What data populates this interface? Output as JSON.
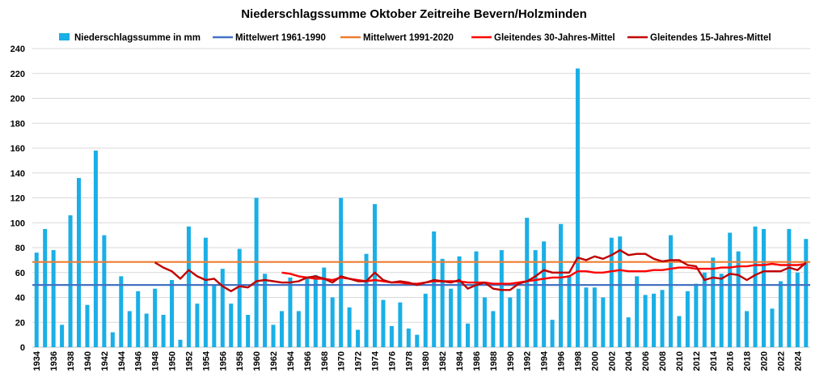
{
  "chart_data": {
    "type": "bar",
    "title": "Niederschlagssumme Oktober Zeitreihe Bevern/Holzminden",
    "xlabel": "",
    "ylabel": "",
    "ylim": [
      0,
      240
    ],
    "yticks": [
      0,
      20,
      40,
      60,
      80,
      100,
      120,
      140,
      160,
      180,
      200,
      220,
      240
    ],
    "xtick_labels": [
      "1934",
      "1936",
      "1938",
      "1940",
      "1942",
      "1944",
      "1946",
      "1948",
      "1950",
      "1952",
      "1954",
      "1956",
      "1958",
      "1960",
      "1962",
      "1964",
      "1966",
      "1968",
      "1970",
      "1972",
      "1974",
      "1976",
      "1978",
      "1980",
      "1982",
      "1984",
      "1986",
      "1988",
      "1990",
      "1992",
      "1994",
      "1996",
      "1998",
      "2000",
      "2002",
      "2004",
      "2006",
      "2008",
      "2010",
      "2012",
      "2014",
      "2016",
      "2018",
      "2020",
      "2022",
      "2024"
    ],
    "grid": "horizontal",
    "legend_position": "top",
    "categories": [
      1934,
      1935,
      1936,
      1937,
      1938,
      1939,
      1940,
      1941,
      1942,
      1943,
      1944,
      1945,
      1946,
      1947,
      1948,
      1949,
      1950,
      1951,
      1952,
      1953,
      1954,
      1955,
      1956,
      1957,
      1958,
      1959,
      1960,
      1961,
      1962,
      1963,
      1964,
      1965,
      1966,
      1967,
      1968,
      1969,
      1970,
      1971,
      1972,
      1973,
      1974,
      1975,
      1976,
      1977,
      1978,
      1979,
      1980,
      1981,
      1982,
      1983,
      1984,
      1985,
      1986,
      1987,
      1988,
      1989,
      1990,
      1991,
      1992,
      1993,
      1994,
      1995,
      1996,
      1997,
      1998,
      1999,
      2000,
      2001,
      2002,
      2003,
      2004,
      2005,
      2006,
      2007,
      2008,
      2009,
      2010,
      2011,
      2012,
      2013,
      2014,
      2015,
      2016,
      2017,
      2018,
      2019,
      2020,
      2021,
      2022,
      2023,
      2024,
      2025
    ],
    "series": [
      {
        "name": "Niederschlagssumme in mm",
        "kind": "bar",
        "color": "#1AAFE6",
        "values": [
          76,
          95,
          78,
          18,
          106,
          136,
          34,
          158,
          90,
          12,
          57,
          29,
          45,
          27,
          47,
          26,
          54,
          6,
          97,
          35,
          88,
          50,
          63,
          35,
          79,
          26,
          120,
          59,
          18,
          29,
          56,
          29,
          56,
          58,
          64,
          40,
          120,
          32,
          14,
          75,
          115,
          38,
          17,
          36,
          15,
          10,
          43,
          93,
          71,
          47,
          73,
          19,
          77,
          40,
          29,
          78,
          40,
          47,
          104,
          78,
          85,
          22,
          99,
          58,
          224,
          48,
          48,
          40,
          88,
          89,
          24,
          57,
          42,
          43,
          46,
          90,
          25,
          45,
          51,
          60,
          72,
          59,
          92,
          77,
          29,
          97,
          95,
          31,
          53,
          95,
          60,
          87
        ]
      },
      {
        "name": "Mittelwert 1961-1990",
        "kind": "hline",
        "color": "#4472C4",
        "value": 50
      },
      {
        "name": "Mittelwert 1991-2020",
        "kind": "hline",
        "color": "#ED7D31",
        "value": 68.5
      },
      {
        "name": "Gleitendes 30-Jahres-Mittel",
        "kind": "line",
        "color": "#FF0000",
        "x": [
          1963,
          1964,
          1965,
          1966,
          1967,
          1968,
          1969,
          1970,
          1971,
          1972,
          1973,
          1974,
          1975,
          1976,
          1977,
          1978,
          1979,
          1980,
          1981,
          1982,
          1983,
          1984,
          1985,
          1986,
          1987,
          1988,
          1989,
          1990,
          1991,
          1992,
          1993,
          1994,
          1995,
          1996,
          1997,
          1998,
          1999,
          2000,
          2001,
          2002,
          2003,
          2004,
          2005,
          2006,
          2007,
          2008,
          2009,
          2010,
          2011,
          2012,
          2013,
          2014,
          2015,
          2016,
          2017,
          2018,
          2019,
          2020,
          2021,
          2022,
          2023,
          2024,
          2025
        ],
        "values": [
          60,
          59,
          57,
          56,
          55,
          55,
          54,
          56,
          55,
          54,
          53,
          54,
          53,
          52,
          52,
          51,
          51,
          52,
          53,
          53,
          53,
          53,
          52,
          52,
          52,
          51,
          51,
          51,
          52,
          53,
          54,
          55,
          56,
          56,
          57,
          61,
          61,
          60,
          60,
          61,
          62,
          61,
          61,
          61,
          62,
          62,
          63,
          64,
          64,
          63,
          63,
          63,
          64,
          64,
          65,
          65,
          66,
          66,
          67,
          66,
          66,
          66,
          67
        ]
      },
      {
        "name": "Gleitendes 15-Jahres-Mittel",
        "kind": "line",
        "color": "#C00000",
        "x": [
          1948,
          1949,
          1950,
          1951,
          1952,
          1953,
          1954,
          1955,
          1956,
          1957,
          1958,
          1959,
          1960,
          1961,
          1962,
          1963,
          1964,
          1965,
          1966,
          1967,
          1968,
          1969,
          1970,
          1971,
          1972,
          1973,
          1974,
          1975,
          1976,
          1977,
          1978,
          1979,
          1980,
          1981,
          1982,
          1983,
          1984,
          1985,
          1986,
          1987,
          1988,
          1989,
          1990,
          1991,
          1992,
          1993,
          1994,
          1995,
          1996,
          1997,
          1998,
          1999,
          2000,
          2001,
          2002,
          2003,
          2004,
          2005,
          2006,
          2007,
          2008,
          2009,
          2010,
          2011,
          2012,
          2013,
          2014,
          2015,
          2016,
          2017,
          2018,
          2019,
          2020,
          2021,
          2022,
          2023,
          2024,
          2025
        ],
        "values": [
          68,
          64,
          61,
          55,
          62,
          57,
          54,
          55,
          49,
          45,
          49,
          48,
          53,
          54,
          53,
          52,
          52,
          53,
          56,
          57,
          55,
          52,
          57,
          55,
          53,
          53,
          60,
          54,
          52,
          53,
          52,
          50,
          52,
          54,
          53,
          52,
          54,
          47,
          50,
          52,
          47,
          46,
          46,
          51,
          53,
          57,
          62,
          60,
          60,
          60,
          72,
          70,
          73,
          71,
          74,
          78,
          74,
          75,
          75,
          71,
          69,
          70,
          70,
          66,
          65,
          54,
          56,
          55,
          59,
          58,
          54,
          58,
          61,
          61,
          61,
          64,
          62,
          68
        ]
      }
    ]
  }
}
